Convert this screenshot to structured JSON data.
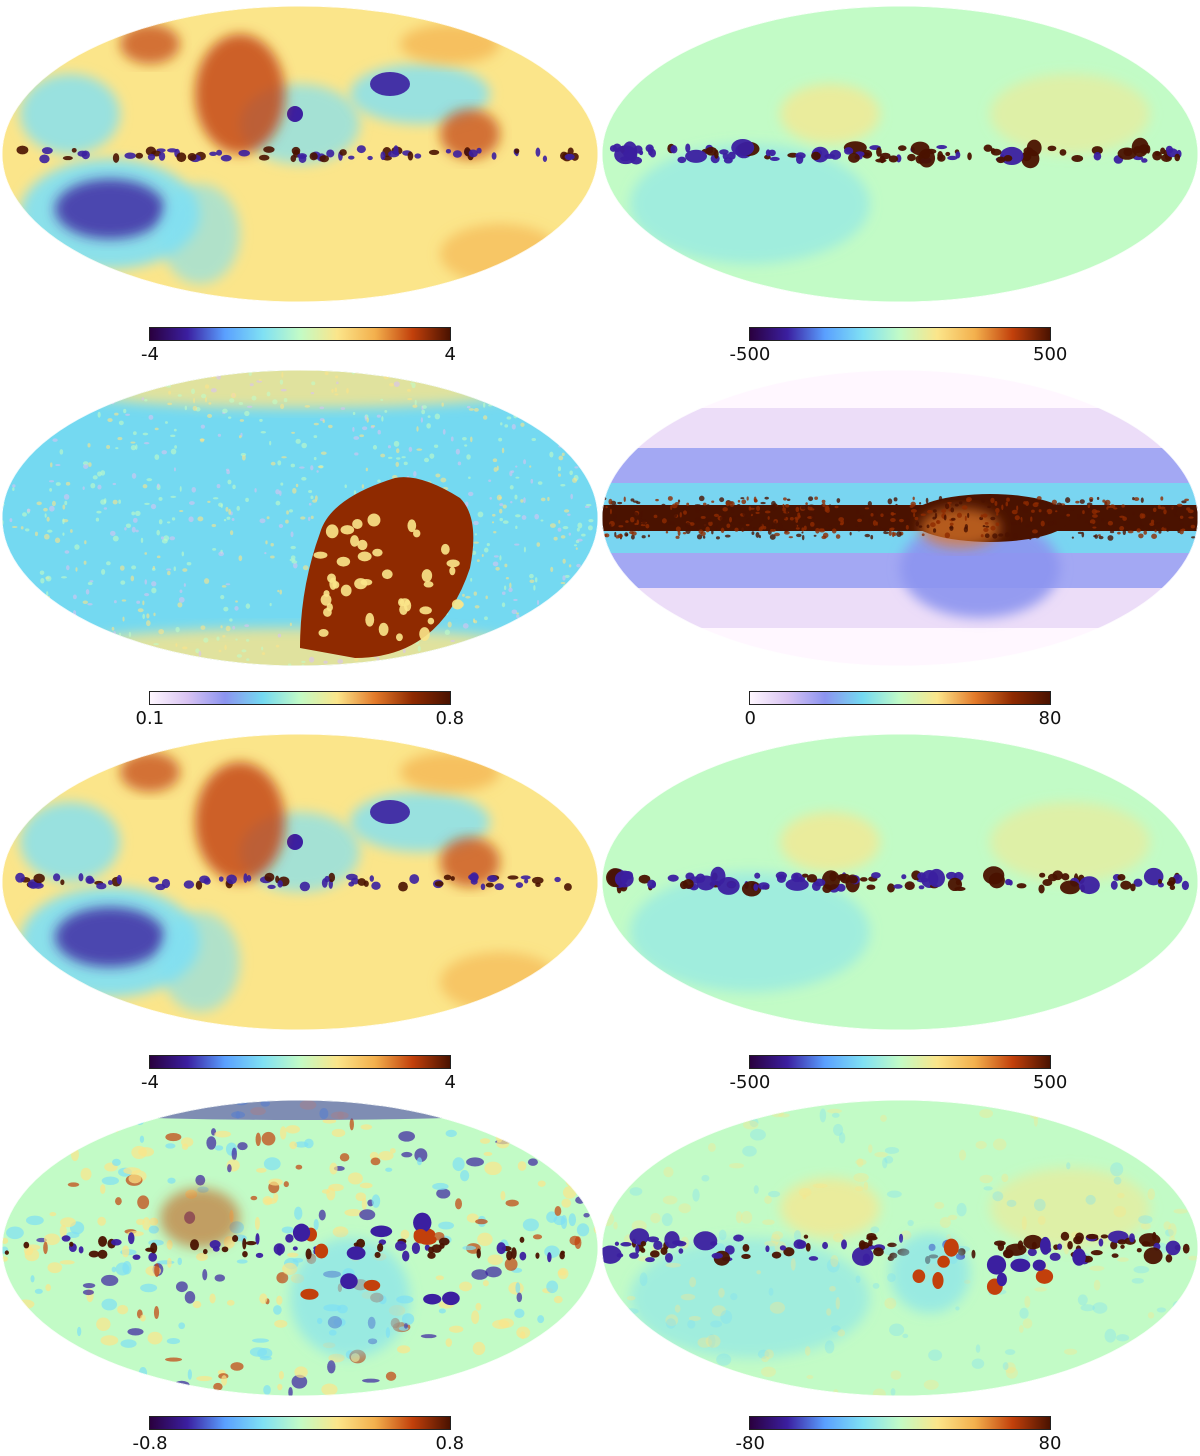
{
  "figure": {
    "type": "heatmap",
    "projection": "Mollweide all-sky",
    "colormaps": {
      "diverging": [
        "#2a003f",
        "#3b1fa0",
        "#5aa0ff",
        "#7fe0f4",
        "#c2fbc6",
        "#fbe58a",
        "#f3b04d",
        "#c2400b",
        "#4a1200"
      ],
      "sequential": [
        "#fff7ff",
        "#d9c3f2",
        "#8c94f0",
        "#74d9f1",
        "#c2fbc6",
        "#fbe58a",
        "#e37a2a",
        "#8f2a00",
        "#4a1200"
      ]
    },
    "panels": [
      {
        "id": "row1-left",
        "colormap": "diverging",
        "min_label": "-4",
        "max_label": "4",
        "pattern": "large-scale"
      },
      {
        "id": "row1-right",
        "colormap": "diverging",
        "min_label": "-500",
        "max_label": "500",
        "pattern": "galactic-plane"
      },
      {
        "id": "row2-left",
        "colormap": "sequential",
        "min_label": "0.1",
        "max_label": "0.8",
        "pattern": "noise-with-patch"
      },
      {
        "id": "row2-right",
        "colormap": "sequential",
        "min_label": "0",
        "max_label": "80",
        "pattern": "bands"
      },
      {
        "id": "row3-left",
        "colormap": "diverging",
        "min_label": "-4",
        "max_label": "4",
        "pattern": "large-scale"
      },
      {
        "id": "row3-right",
        "colormap": "diverging",
        "min_label": "-500",
        "max_label": "500",
        "pattern": "galactic-plane"
      },
      {
        "id": "row4-left",
        "colormap": "diverging",
        "min_label": "-0.8",
        "max_label": "0.8",
        "pattern": "residual"
      },
      {
        "id": "row4-right",
        "colormap": "diverging",
        "min_label": "-80",
        "max_label": "80",
        "pattern": "residual-plane"
      }
    ]
  }
}
